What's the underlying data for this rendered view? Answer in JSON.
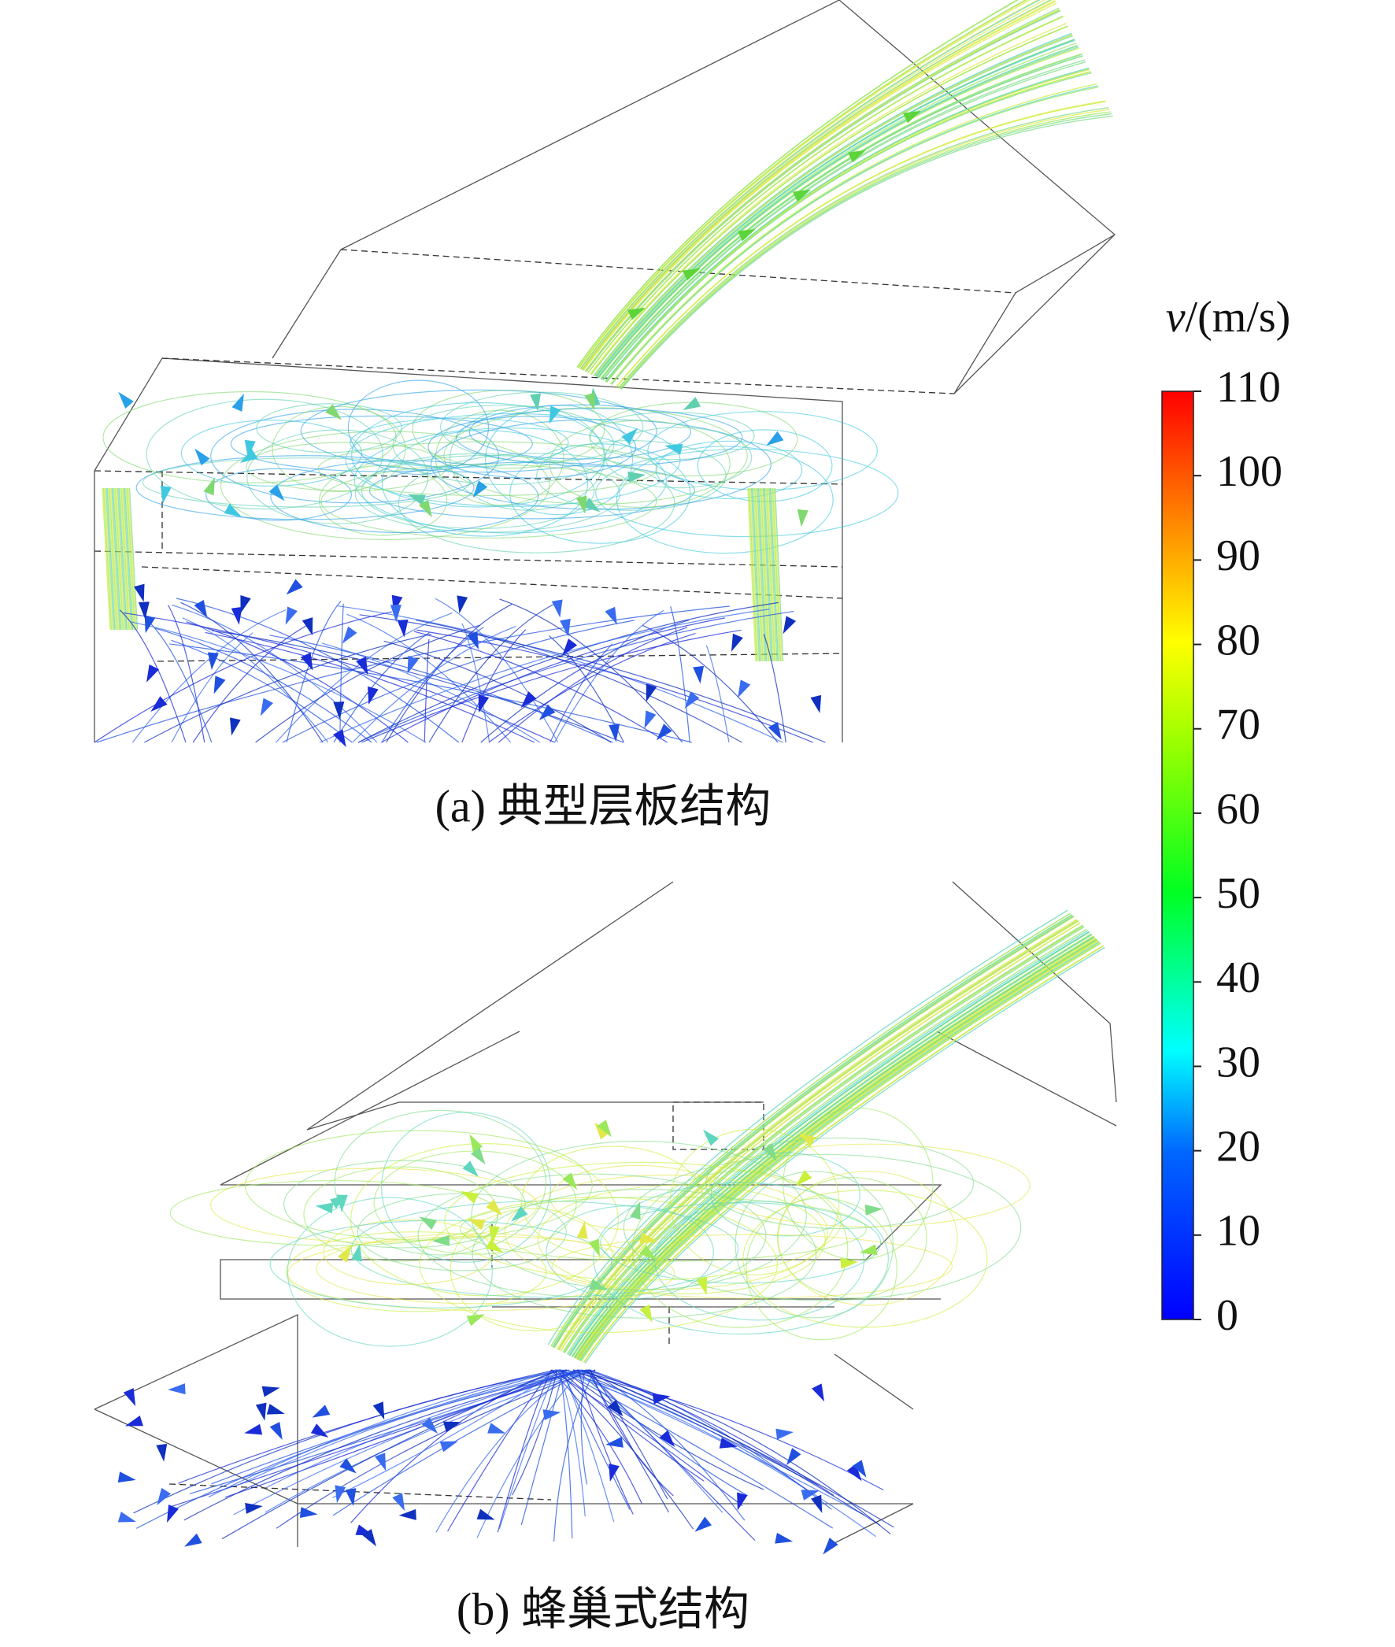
{
  "panels": [
    {
      "caption": "(a) 典型层板结构"
    },
    {
      "caption": "(b) 蜂巢式结构"
    }
  ],
  "colorbar": {
    "label_var": "v",
    "label_unit": "/(m/s)",
    "range": [
      0,
      110
    ],
    "ticks": [
      0,
      10,
      20,
      30,
      40,
      50,
      60,
      70,
      80,
      90,
      100,
      110
    ]
  }
}
